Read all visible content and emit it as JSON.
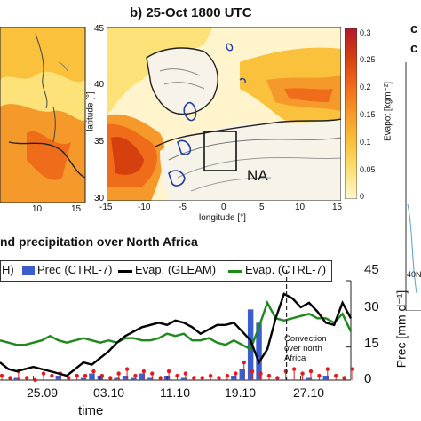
{
  "panel_b": {
    "title": "b) 25-Oct 1800 UTC",
    "ylabel": "latitude [°]",
    "xlabel": "longitude [°]",
    "box_label": "NA",
    "y_ticks": [
      "45",
      "40",
      "35",
      "30"
    ],
    "x_ticks": [
      "-15",
      "-10",
      "-5",
      "0",
      "5",
      "10",
      "15"
    ],
    "left_x_ticks": [
      "10",
      "15"
    ],
    "colorbar": {
      "label": "Evapot [kgm⁻²]",
      "ticks": [
        "0.3",
        "0.25",
        "0.2",
        "0.15",
        "0.1",
        "0.05",
        "0"
      ],
      "colors": [
        "#b2182b",
        "#d6400f",
        "#ef6c1a",
        "#f59a2a",
        "#f9c13c",
        "#fde27a",
        "#fff8d0"
      ]
    }
  },
  "panel_c": {
    "partial_letters": [
      "c",
      "c"
    ],
    "tick": "40N"
  },
  "timeseries": {
    "title": "nd precipitation over North Africa",
    "legend": {
      "partial": "H)",
      "prec_ctrl": "Prec (CTRL-7)",
      "evap_gleam": "Evap. (GLEAM)",
      "evap_ctrl": "Evap. (CTRL-7)"
    },
    "annotation": [
      "Convection",
      "over north",
      "Africa"
    ],
    "right_axis_label": "Prec [mm d⁻¹]",
    "x_label": "time",
    "x_ticks": [
      "25.09",
      "03.10",
      "11.10",
      "19.10",
      "27.10"
    ],
    "y_ticks": [
      "45",
      "30",
      "15",
      "0"
    ],
    "colors": {
      "gleam": "#000000",
      "ctrl_evap": "#1e8a1e",
      "prec_bar": "#3a5fcd",
      "gleam_bar": "#e41a1c"
    }
  },
  "chart_data": {
    "type": "line",
    "title": "nd precipitation over North Africa",
    "xlabel": "time",
    "ylabel": "Prec [mm d⁻¹]",
    "x_ticks": [
      "25.09",
      "03.10",
      "11.10",
      "19.10",
      "27.10"
    ],
    "ylim": [
      0,
      45
    ],
    "x": [
      -4,
      -3,
      -2,
      -1,
      0,
      1,
      2,
      3,
      4,
      5,
      6,
      7,
      8,
      9,
      10,
      11,
      12,
      13,
      14,
      15,
      16,
      17,
      18,
      19,
      20,
      21,
      22,
      23,
      24,
      25,
      26,
      27,
      28,
      29,
      30,
      31,
      32,
      33,
      34,
      35,
      36,
      37,
      38
    ],
    "series": [
      {
        "name": "Evap. (GLEAM)",
        "type": "line",
        "values": [
          8,
          5,
          4,
          5,
          6,
          5,
          4,
          3,
          2,
          5,
          8,
          7,
          10,
          13,
          17,
          20,
          22,
          24,
          25,
          26,
          25,
          27,
          26,
          24,
          21,
          23,
          25,
          25,
          26,
          22,
          18,
          8,
          14,
          28,
          39,
          37,
          33,
          35,
          31,
          26,
          25,
          35,
          28
        ]
      },
      {
        "name": "Evap. (CTRL-7)",
        "type": "line",
        "values": [
          18,
          17,
          16,
          16,
          17,
          18,
          20,
          18,
          17,
          18,
          19,
          18,
          17,
          18,
          17,
          19,
          19,
          18,
          18,
          19,
          21,
          20,
          21,
          18,
          18,
          19,
          17,
          16,
          18,
          16,
          14,
          24,
          35,
          28,
          27,
          28,
          29,
          30,
          28,
          28,
          26,
          30,
          22
        ]
      },
      {
        "name": "Prec (CTRL-7)",
        "type": "bar",
        "values": [
          0,
          0,
          1,
          0,
          0,
          0,
          0,
          2,
          0,
          0,
          1,
          3,
          2,
          0,
          1,
          2,
          1,
          3,
          1,
          0,
          2,
          0,
          1,
          0,
          0,
          0,
          0,
          0,
          2,
          5,
          32,
          26,
          0,
          0,
          0,
          0,
          0,
          1,
          0,
          2,
          0,
          0,
          0
        ]
      },
      {
        "name": "H)",
        "type": "bar",
        "values": [
          2,
          1,
          4,
          1,
          0,
          3,
          2,
          3,
          1,
          2,
          2,
          4,
          2,
          1,
          3,
          5,
          2,
          4,
          3,
          1,
          4,
          2,
          3,
          1,
          1,
          2,
          1,
          2,
          3,
          8,
          4,
          3,
          2,
          1,
          4,
          5,
          3,
          4,
          2,
          5,
          2,
          1,
          5
        ]
      }
    ]
  }
}
